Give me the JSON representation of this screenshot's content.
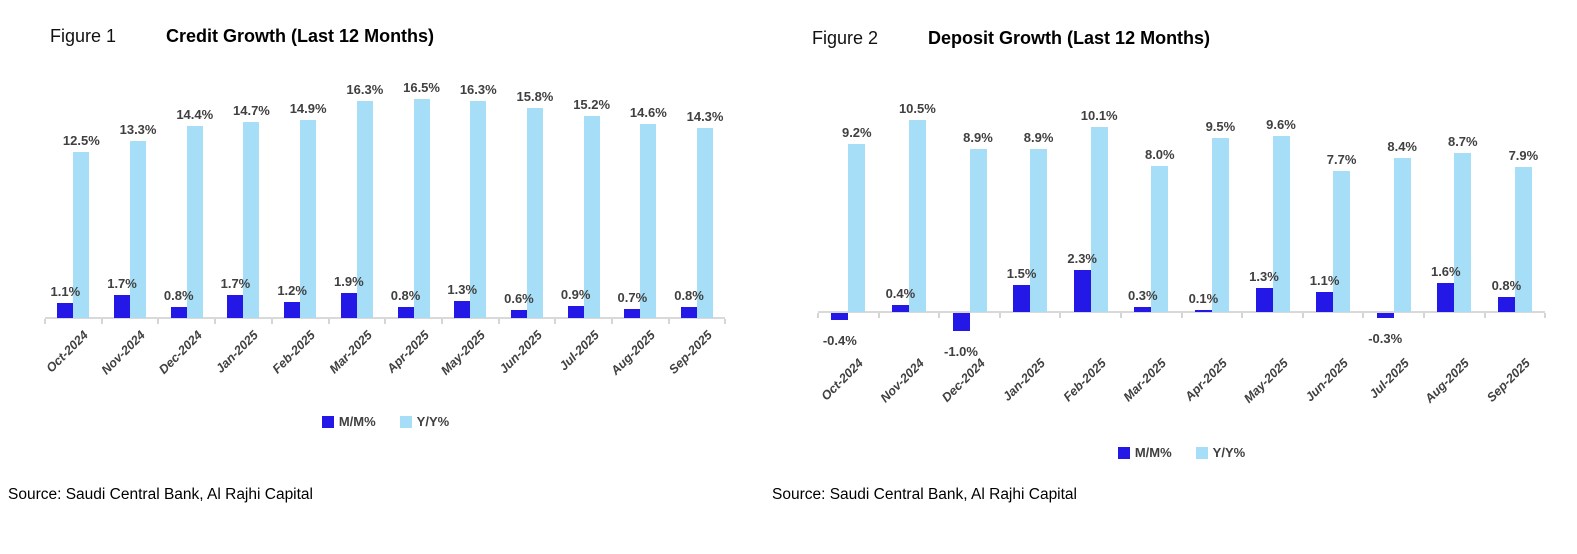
{
  "colors": {
    "mm_bar": "#2318E6",
    "yy_bar": "#A6DEF7",
    "axis_line": "#D9D9D9",
    "data_label_text": "#404040",
    "title_text": "#000000"
  },
  "chart_data": [
    {
      "type": "bar",
      "figure_label": "Figure 1",
      "title": "Credit Growth (Last 12 Months)",
      "source": "Source: Saudi Central Bank, Al Rajhi Capital",
      "categories": [
        "Oct-2024",
        "Nov-2024",
        "Dec-2024",
        "Jan-2025",
        "Feb-2025",
        "Mar-2025",
        "Apr-2025",
        "May-2025",
        "Jun-2025",
        "Jul-2025",
        "Aug-2025",
        "Sep-2025"
      ],
      "series": [
        {
          "name": "M/M%",
          "color": "#2318E6",
          "values": [
            1.1,
            1.7,
            0.8,
            1.7,
            1.2,
            1.9,
            0.8,
            1.3,
            0.6,
            0.9,
            0.7,
            0.8
          ]
        },
        {
          "name": "Y/Y%",
          "color": "#A6DEF7",
          "values": [
            12.5,
            13.3,
            14.4,
            14.7,
            14.9,
            16.3,
            16.5,
            16.3,
            15.8,
            15.2,
            14.6,
            14.3
          ]
        }
      ],
      "value_format": "one_decimal_percent",
      "data_labels": "outside_end",
      "legend_position": "bottom",
      "y_axis_visible": false,
      "grid": false,
      "ylim": [
        0,
        17.5
      ]
    },
    {
      "type": "bar",
      "figure_label": "Figure 2",
      "title": "Deposit Growth (Last 12 Months)",
      "source": "Source: Saudi Central Bank, Al Rajhi Capital",
      "categories": [
        "Oct-2024",
        "Nov-2024",
        "Dec-2024",
        "Jan-2025",
        "Feb-2025",
        "Mar-2025",
        "Apr-2025",
        "May-2025",
        "Jun-2025",
        "Jul-2025",
        "Aug-2025",
        "Sep-2025"
      ],
      "series": [
        {
          "name": "M/M%",
          "color": "#2318E6",
          "values": [
            -0.4,
            0.4,
            -1.0,
            1.5,
            2.3,
            0.3,
            0.1,
            1.3,
            1.1,
            -0.3,
            1.6,
            0.8
          ]
        },
        {
          "name": "Y/Y%",
          "color": "#A6DEF7",
          "values": [
            9.2,
            10.5,
            8.9,
            8.9,
            10.1,
            8.0,
            9.5,
            9.6,
            7.7,
            8.4,
            8.7,
            7.9
          ]
        }
      ],
      "value_format": "one_decimal_percent",
      "data_labels": "outside_end",
      "legend_position": "bottom",
      "y_axis_visible": false,
      "grid": false,
      "ylim": [
        -1.5,
        12
      ]
    }
  ]
}
